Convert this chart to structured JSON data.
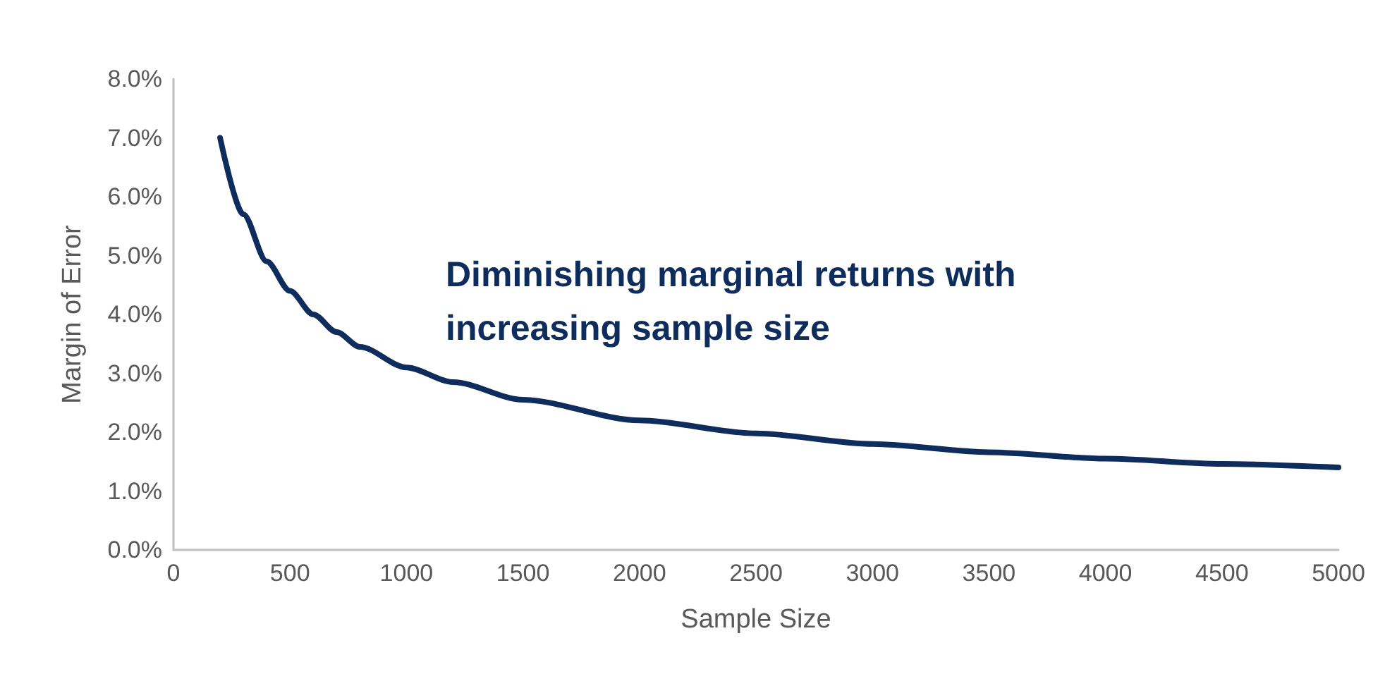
{
  "chart_data": {
    "type": "line",
    "xlabel": "Sample Size",
    "ylabel": "Margin of Error",
    "annotations": [
      "Diminishing marginal returns with\nincreasing sample size"
    ],
    "x": [
      200,
      300,
      400,
      500,
      600,
      700,
      800,
      1000,
      1200,
      1500,
      2000,
      2500,
      3000,
      3500,
      4000,
      4500,
      5000
    ],
    "series": [
      {
        "color": "#0e2d5c",
        "values": [
          7.0,
          5.7,
          4.9,
          4.4,
          4.0,
          3.7,
          3.45,
          3.1,
          2.85,
          2.55,
          2.2,
          1.98,
          1.8,
          1.66,
          1.55,
          1.46,
          1.4
        ]
      }
    ],
    "xlim": [
      0,
      5000
    ],
    "xticks": [
      0,
      500,
      1000,
      1500,
      2000,
      2500,
      3000,
      3500,
      4000,
      4500,
      5000
    ],
    "ylim": [
      0,
      8
    ],
    "yticks": [
      {
        "value": 0,
        "label": "0.0%"
      },
      {
        "value": 1,
        "label": "1.0%"
      },
      {
        "value": 2,
        "label": "2.0%"
      },
      {
        "value": 3,
        "label": "3.0%"
      },
      {
        "value": 4,
        "label": "4.0%"
      },
      {
        "value": 5,
        "label": "5.0%"
      },
      {
        "value": 6,
        "label": "6.0%"
      },
      {
        "value": 7,
        "label": "7.0%"
      },
      {
        "value": 8,
        "label": "8.0%"
      }
    ],
    "grid": false,
    "marker": "none",
    "line_style": "solid"
  }
}
